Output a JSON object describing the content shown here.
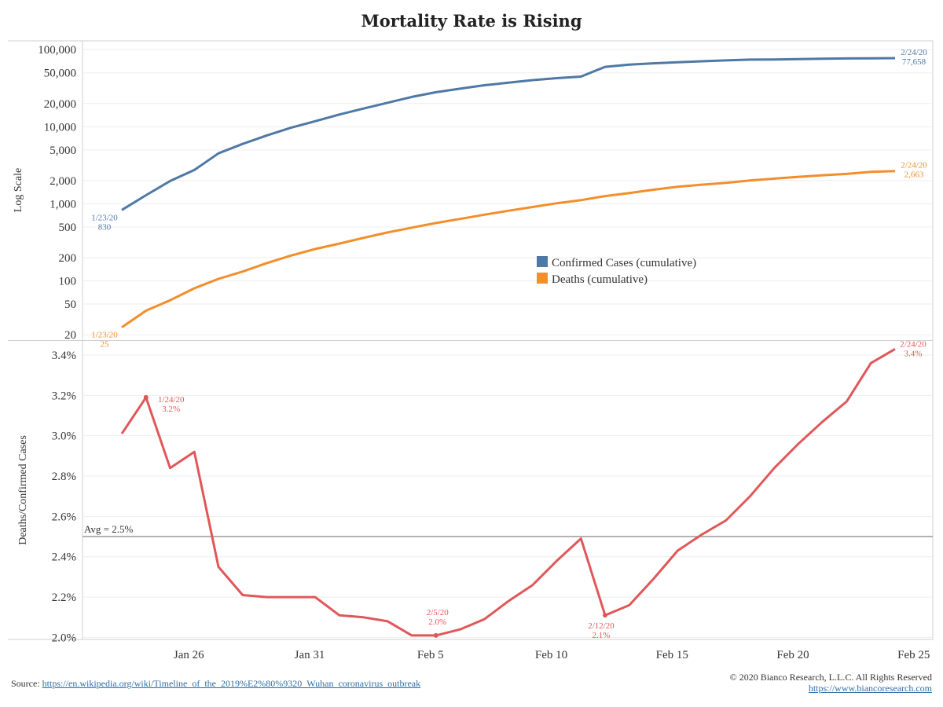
{
  "title": "Mortality Rate is Rising",
  "colors": {
    "confirmed": "#4e79a7",
    "deaths": "#f28e2b",
    "rate": "#e15759",
    "avg": "#999999",
    "grid": "#eeeeee"
  },
  "chart_data": [
    {
      "type": "line",
      "name": "top-panel",
      "ylabel": "Log Scale",
      "yscale": "log",
      "ylim": [
        17,
        130000
      ],
      "yticks": [
        {
          "v": 20,
          "label": "20"
        },
        {
          "v": 50,
          "label": "50"
        },
        {
          "v": 100,
          "label": "100"
        },
        {
          "v": 200,
          "label": "200"
        },
        {
          "v": 500,
          "label": "500"
        },
        {
          "v": 1000,
          "label": "1,000"
        },
        {
          "v": 2000,
          "label": "2,000"
        },
        {
          "v": 5000,
          "label": "5,000"
        },
        {
          "v": 10000,
          "label": "10,000"
        },
        {
          "v": 20000,
          "label": "20,000"
        },
        {
          "v": 50000,
          "label": "50,000"
        },
        {
          "v": 100000,
          "label": "100,000"
        }
      ],
      "x": [
        "1/23/20",
        "1/24/20",
        "1/25/20",
        "1/26/20",
        "1/27/20",
        "1/28/20",
        "1/29/20",
        "1/30/20",
        "1/31/20",
        "2/1/20",
        "2/2/20",
        "2/3/20",
        "2/4/20",
        "2/5/20",
        "2/6/20",
        "2/7/20",
        "2/8/20",
        "2/9/20",
        "2/10/20",
        "2/11/20",
        "2/12/20",
        "2/13/20",
        "2/14/20",
        "2/15/20",
        "2/16/20",
        "2/17/20",
        "2/18/20",
        "2/19/20",
        "2/20/20",
        "2/21/20",
        "2/22/20",
        "2/23/20",
        "2/24/20"
      ],
      "series": [
        {
          "name": "Confirmed Cases (cumulative)",
          "color": "#4e79a7",
          "values": [
            830,
            1290,
            1975,
            2744,
            4515,
            5974,
            7711,
            9692,
            11791,
            14380,
            17205,
            20440,
            24324,
            28018,
            31161,
            34546,
            37198,
            40171,
            42638,
            44653,
            59804,
            63851,
            66492,
            68500,
            70548,
            72436,
            74185,
            74576,
            75465,
            76288,
            76936,
            77150,
            77658
          ]
        },
        {
          "name": "Deaths (cumulative)",
          "color": "#f28e2b",
          "values": [
            25,
            41,
            56,
            80,
            106,
            132,
            170,
            213,
            259,
            304,
            361,
            425,
            490,
            563,
            636,
            722,
            811,
            908,
            1016,
            1113,
            1259,
            1380,
            1523,
            1665,
            1770,
            1868,
            2004,
            2118,
            2236,
            2345,
            2442,
            2592,
            2663
          ]
        }
      ],
      "annotations": [
        {
          "series": 0,
          "index": 0,
          "date": "1/23/20",
          "value": "830"
        },
        {
          "series": 0,
          "index": 32,
          "date": "2/24/20",
          "value": "77,658"
        },
        {
          "series": 1,
          "index": 0,
          "date": "1/23/20",
          "value": "25"
        },
        {
          "series": 1,
          "index": 32,
          "date": "2/24/20",
          "value": "2,663"
        }
      ],
      "legend": {
        "position": "center",
        "entries": [
          "Confirmed Cases (cumulative)",
          "Deaths (cumulative)"
        ]
      }
    },
    {
      "type": "line",
      "name": "bottom-panel",
      "ylabel": "Deaths/Confirmed Cases",
      "ylim": [
        1.99,
        3.47
      ],
      "yticks": [
        {
          "v": 2.0,
          "label": "2.0%"
        },
        {
          "v": 2.2,
          "label": "2.2%"
        },
        {
          "v": 2.4,
          "label": "2.4%"
        },
        {
          "v": 2.6,
          "label": "2.6%"
        },
        {
          "v": 2.8,
          "label": "2.8%"
        },
        {
          "v": 3.0,
          "label": "3.0%"
        },
        {
          "v": 3.2,
          "label": "3.2%"
        },
        {
          "v": 3.4,
          "label": "3.4%"
        }
      ],
      "x": [
        "1/23/20",
        "1/24/20",
        "1/25/20",
        "1/26/20",
        "1/27/20",
        "1/28/20",
        "1/29/20",
        "1/30/20",
        "1/31/20",
        "2/1/20",
        "2/2/20",
        "2/3/20",
        "2/4/20",
        "2/5/20",
        "2/6/20",
        "2/7/20",
        "2/8/20",
        "2/9/20",
        "2/10/20",
        "2/11/20",
        "2/12/20",
        "2/13/20",
        "2/14/20",
        "2/15/20",
        "2/16/20",
        "2/17/20",
        "2/18/20",
        "2/19/20",
        "2/20/20",
        "2/21/20",
        "2/22/20",
        "2/23/20",
        "2/24/20"
      ],
      "series": [
        {
          "name": "Deaths/Confirmed Cases",
          "color": "#e15759",
          "values": [
            3.01,
            3.19,
            2.84,
            2.92,
            2.35,
            2.21,
            2.2,
            2.2,
            2.2,
            2.11,
            2.1,
            2.08,
            2.01,
            2.01,
            2.04,
            2.09,
            2.18,
            2.26,
            2.38,
            2.49,
            2.11,
            2.16,
            2.29,
            2.43,
            2.51,
            2.58,
            2.7,
            2.84,
            2.96,
            3.07,
            3.17,
            3.36,
            3.43
          ]
        }
      ],
      "reference_line": {
        "value": 2.5,
        "label": "Avg = 2.5%"
      },
      "annotations": [
        {
          "index": 1,
          "date": "1/24/20",
          "value": "3.2%",
          "marker": true
        },
        {
          "index": 13,
          "date": "2/5/20",
          "value": "2.0%",
          "marker": true
        },
        {
          "index": 20,
          "date": "2/12/20",
          "value": "2.1%",
          "marker": true
        },
        {
          "index": 32,
          "date": "2/24/20",
          "value": "3.4%",
          "marker": false
        }
      ]
    }
  ],
  "x_axis": {
    "ticks": [
      {
        "index": 3,
        "label": "Jan 26"
      },
      {
        "index": 8,
        "label": "Jan 31"
      },
      {
        "index": 13,
        "label": "Feb 5"
      },
      {
        "index": 18,
        "label": "Feb 10"
      },
      {
        "index": 23,
        "label": "Feb 15"
      },
      {
        "index": 28,
        "label": "Feb 20"
      },
      {
        "index": 33,
        "label": "Feb 25"
      }
    ]
  },
  "footer": {
    "source_label": "Source:",
    "source_url": "https://en.wikipedia.org/wiki/Timeline_of_the_2019%E2%80%9320_Wuhan_coronavirus_outbreak",
    "copyright": "© 2020 Bianco Research, L.L.C. All Rights Reserved",
    "site_url": "https://www.biancoresearch.com"
  }
}
